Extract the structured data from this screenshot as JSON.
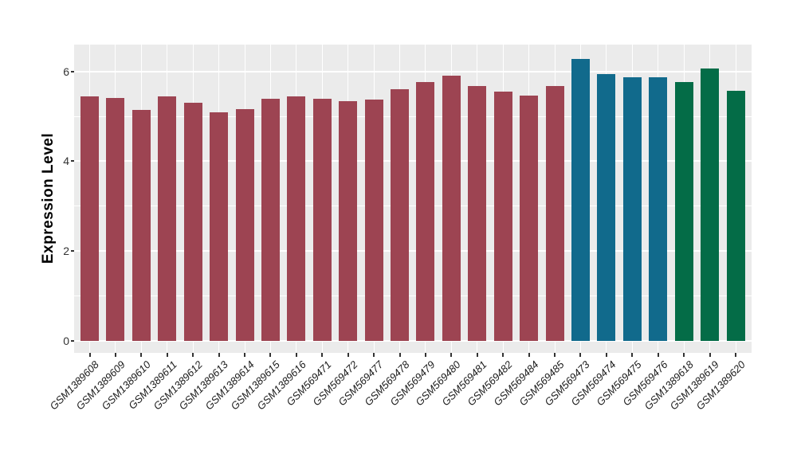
{
  "chart_data": {
    "type": "bar",
    "title": "",
    "xlabel": "",
    "ylabel": "Expression Level",
    "ylim": [
      0,
      6.6
    ],
    "yticks": [
      0,
      2,
      4,
      6
    ],
    "yticks_minor": [
      1,
      3,
      5
    ],
    "grid": true,
    "legend": false,
    "panel_background": "#EBEBEB",
    "grid_color": "#FFFFFF",
    "tick_color": "#333333",
    "groups": [
      {
        "name": "group-1",
        "color": "#9D4452"
      },
      {
        "name": "group-2",
        "color": "#116A8C"
      },
      {
        "name": "group-3",
        "color": "#046C47"
      }
    ],
    "bars": [
      {
        "label": "GSM1389608",
        "value": 5.45,
        "group": 0
      },
      {
        "label": "GSM1389609",
        "value": 5.42,
        "group": 0
      },
      {
        "label": "GSM1389610",
        "value": 5.15,
        "group": 0
      },
      {
        "label": "GSM1389611",
        "value": 5.44,
        "group": 0
      },
      {
        "label": "GSM1389612",
        "value": 5.31,
        "group": 0
      },
      {
        "label": "GSM1389613",
        "value": 5.1,
        "group": 0
      },
      {
        "label": "GSM1389614",
        "value": 5.16,
        "group": 0
      },
      {
        "label": "GSM1389615",
        "value": 5.4,
        "group": 0
      },
      {
        "label": "GSM1389616",
        "value": 5.45,
        "group": 0
      },
      {
        "label": "GSM569471",
        "value": 5.4,
        "group": 0
      },
      {
        "label": "GSM569472",
        "value": 5.34,
        "group": 0
      },
      {
        "label": "GSM569477",
        "value": 5.38,
        "group": 0
      },
      {
        "label": "GSM569478",
        "value": 5.6,
        "group": 0
      },
      {
        "label": "GSM569479",
        "value": 5.76,
        "group": 0
      },
      {
        "label": "GSM569480",
        "value": 5.9,
        "group": 0
      },
      {
        "label": "GSM569481",
        "value": 5.68,
        "group": 0
      },
      {
        "label": "GSM569482",
        "value": 5.56,
        "group": 0
      },
      {
        "label": "GSM569484",
        "value": 5.47,
        "group": 0
      },
      {
        "label": "GSM569485",
        "value": 5.68,
        "group": 0
      },
      {
        "label": "GSM569473",
        "value": 6.29,
        "group": 1
      },
      {
        "label": "GSM569474",
        "value": 5.94,
        "group": 1
      },
      {
        "label": "GSM569475",
        "value": 5.88,
        "group": 1
      },
      {
        "label": "GSM569476",
        "value": 5.88,
        "group": 1
      },
      {
        "label": "GSM1389618",
        "value": 5.77,
        "group": 2
      },
      {
        "label": "GSM1389619",
        "value": 6.07,
        "group": 2
      },
      {
        "label": "GSM1389620",
        "value": 5.57,
        "group": 2
      }
    ]
  }
}
